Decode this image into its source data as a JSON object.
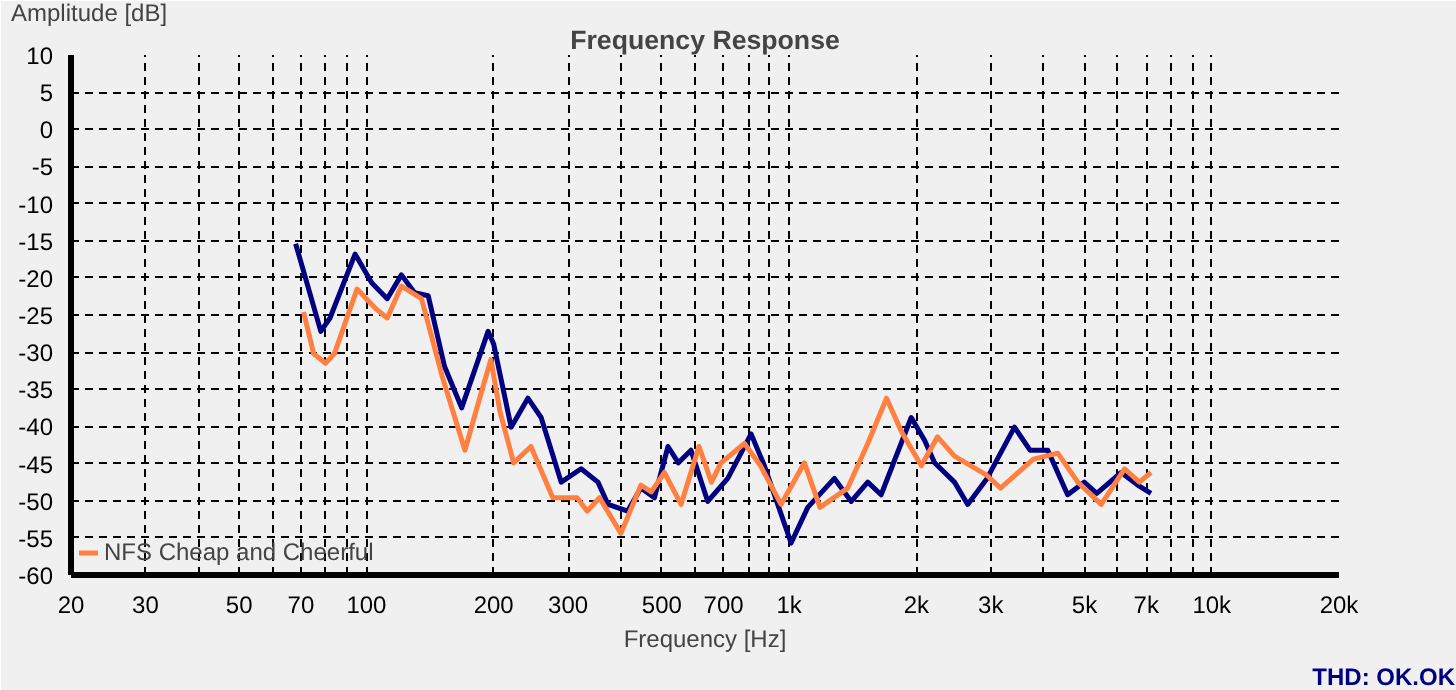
{
  "chart_data": {
    "type": "line",
    "title": "Frequency Response",
    "xlabel": "Frequency [Hz]",
    "ylabel": "Amplitude [dB]",
    "log": "x",
    "xlim": [
      20,
      20000
    ],
    "ylim": [
      -60,
      10
    ],
    "xticks": [
      20,
      30,
      {
        "value": 40,
        "label": null
      },
      50,
      {
        "value": 60,
        "label": null
      },
      70,
      {
        "value": 80,
        "label": null
      },
      {
        "value": 90,
        "label": null
      },
      100,
      200,
      300,
      {
        "value": 400,
        "label": null
      },
      500,
      {
        "value": 600,
        "label": null
      },
      700,
      {
        "value": 800,
        "label": null
      },
      {
        "value": 900,
        "label": null
      },
      {
        "value": 1000,
        "label": "1k"
      },
      {
        "value": 2000,
        "label": "2k"
      },
      {
        "value": 3000,
        "label": "3k"
      },
      {
        "value": 4000,
        "label": null
      },
      {
        "value": 5000,
        "label": "5k"
      },
      {
        "value": 6000,
        "label": null
      },
      {
        "value": 7000,
        "label": "7k"
      },
      {
        "value": 8000,
        "label": null
      },
      {
        "value": 9000,
        "label": null
      },
      {
        "value": 10000,
        "label": "10k"
      },
      {
        "value": 20000,
        "label": "20k"
      }
    ],
    "yticks": [
      10,
      5,
      0,
      -5,
      -10,
      -15,
      -20,
      -25,
      -30,
      -35,
      -40,
      -45,
      -50,
      -55,
      -60
    ],
    "grid": true,
    "legend": "bottom left",
    "line_style": "solid",
    "marker": "none",
    "annotations": [
      "THD: OK.OK"
    ],
    "series": [
      {
        "color": "#000080",
        "x": [
          68,
          78,
          82,
          94,
          103,
          112,
          121,
          130,
          140,
          153,
          168,
          194,
          200,
          220,
          241,
          259,
          289,
          322,
          353,
          373,
          415,
          446,
          480,
          517,
          547,
          586,
          642,
          716,
          813,
          874,
          1011,
          1107,
          1280,
          1403,
          1535,
          1651,
          1945,
          2093,
          2209,
          2462,
          2646,
          2940,
          3414,
          3715,
          4093,
          4560,
          4990,
          5345,
          6105,
          6680,
          7180
        ],
        "values": [
          -15.4,
          -27.2,
          -25.4,
          -16.8,
          -20.7,
          -22.8,
          -19.6,
          -22.0,
          -22.4,
          -31.9,
          -37.5,
          -27.2,
          -28.9,
          -40.1,
          -36.2,
          -38.8,
          -47.5,
          -45.7,
          -47.5,
          -50.5,
          -51.4,
          -48.3,
          -49.6,
          -42.7,
          -44.9,
          -43.2,
          -50.1,
          -47.0,
          -41.0,
          -45.3,
          -55.7,
          -50.9,
          -47.0,
          -50.1,
          -47.5,
          -49.2,
          -38.8,
          -41.9,
          -44.9,
          -47.5,
          -50.5,
          -47.0,
          -40.1,
          -43.2,
          -43.2,
          -49.2,
          -47.5,
          -49.0,
          -46.2,
          -47.9,
          -49.0
        ]
      },
      {
        "name": "NFS Cheap and Cheerful",
        "color": "#ff8040",
        "x": [
          71,
          75,
          80,
          84,
          95,
          105,
          112,
          121,
          135,
          151,
          171,
          187,
          197,
          207,
          223,
          245,
          276,
          315,
          333,
          356,
          400,
          446,
          472,
          507,
          555,
          612,
          655,
          690,
          784,
          856,
          957,
          1087,
          1183,
          1376,
          1535,
          1700,
          1841,
          2055,
          2245,
          2462,
          2940,
          3164,
          3784,
          4322,
          4820,
          5475,
          6220,
          6740,
          7180
        ],
        "values": [
          -24.6,
          -30.2,
          -31.5,
          -30.2,
          -21.5,
          -24.1,
          -25.4,
          -21.1,
          -22.8,
          -33.2,
          -43.2,
          -35.4,
          -31.0,
          -38.0,
          -44.9,
          -42.7,
          -49.6,
          -49.6,
          -51.4,
          -49.6,
          -54.4,
          -47.9,
          -48.8,
          -46.2,
          -50.5,
          -42.7,
          -47.5,
          -44.9,
          -42.3,
          -45.3,
          -50.5,
          -44.9,
          -50.9,
          -48.3,
          -42.3,
          -36.2,
          -40.6,
          -45.3,
          -41.4,
          -44.0,
          -46.6,
          -48.3,
          -44.4,
          -43.6,
          -47.5,
          -50.5,
          -45.7,
          -47.5,
          -46.2
        ]
      }
    ]
  }
}
